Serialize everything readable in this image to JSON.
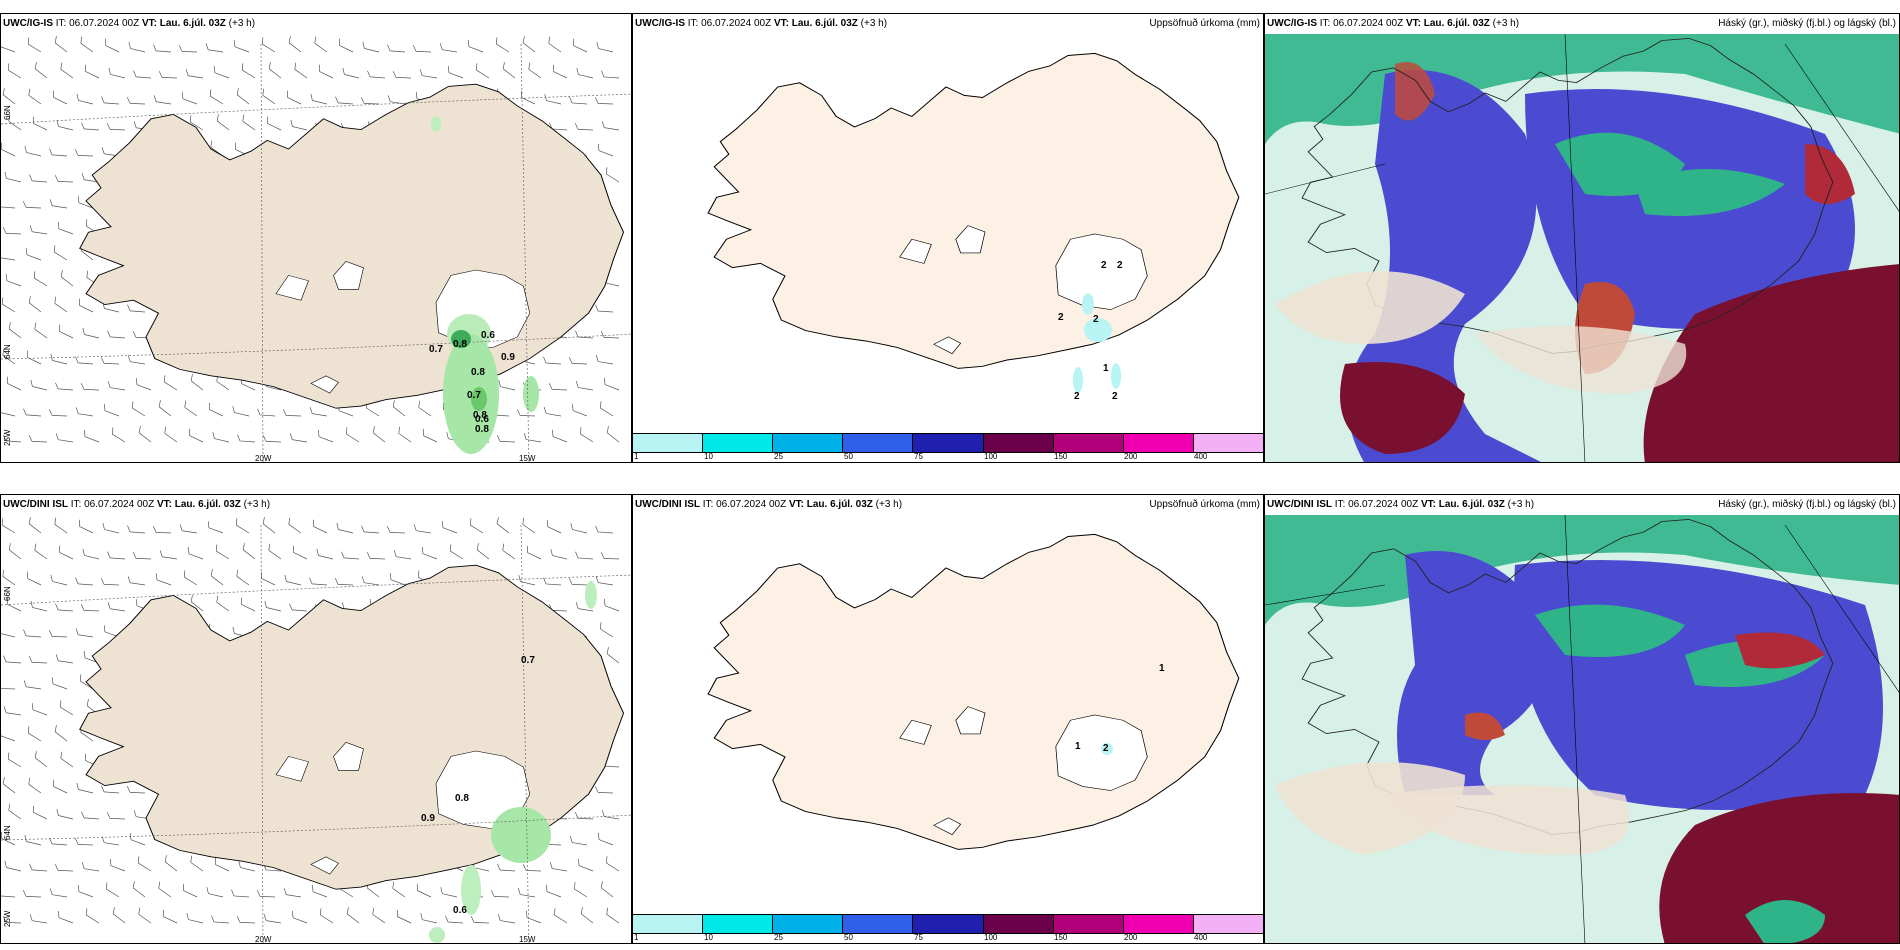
{
  "rows": [
    {
      "model": "UWC/IG-IS",
      "it_label": "IT:",
      "it_value": "06.07.2024 00Z",
      "vt_label": "VT:",
      "vt_value": "Lau. 6.júl. 03Z",
      "lead": "(+3 h)",
      "wind_labels": [
        "0.6",
        "0.7",
        "0.8",
        "0.8",
        "0.9",
        "0.8",
        "0.7",
        "0.6",
        "0.8"
      ],
      "precip_labels": [
        "2",
        "2",
        "2",
        "2",
        "1",
        "2",
        "2"
      ]
    },
    {
      "model": "UWC/DINI ISL",
      "it_label": "IT:",
      "it_value": "06.07.2024 00Z",
      "vt_label": "VT:",
      "vt_value": "Lau. 6.júl. 03Z",
      "lead": "(+3 h)",
      "wind_labels": [
        "0.7",
        "0.8",
        "0.9",
        "0.6"
      ],
      "precip_labels": [
        "1",
        "1",
        "2"
      ]
    }
  ],
  "precip_title": "Uppsöfnuð úrkoma (mm)",
  "cloud_title": "Háský (gr.), miðský (fj.bl.) og lágský (bl.)",
  "axis_labels": {
    "lat66": "66N",
    "lat64": "64N",
    "lon20": "20W",
    "lon15": "15W",
    "lon25": "25W"
  },
  "colorbar": {
    "ticks": [
      "1",
      "10",
      "25",
      "50",
      "75",
      "100",
      "150",
      "200",
      "400"
    ],
    "colors": [
      "#b8f4f4",
      "#00e8e8",
      "#00b0e8",
      "#2f5ee8",
      "#2020b0",
      "#6a004a",
      "#b0007a",
      "#f000b0",
      "#f4b0f4"
    ]
  },
  "colors": {
    "land_wind": "#eee2d3",
    "land_precip": "#fdf0e4",
    "precip_green": "#7edc7e",
    "low_cloud": "#4b4bd2",
    "mid_cloud": "#2fb48a",
    "high_cloud": "#7a1030"
  }
}
